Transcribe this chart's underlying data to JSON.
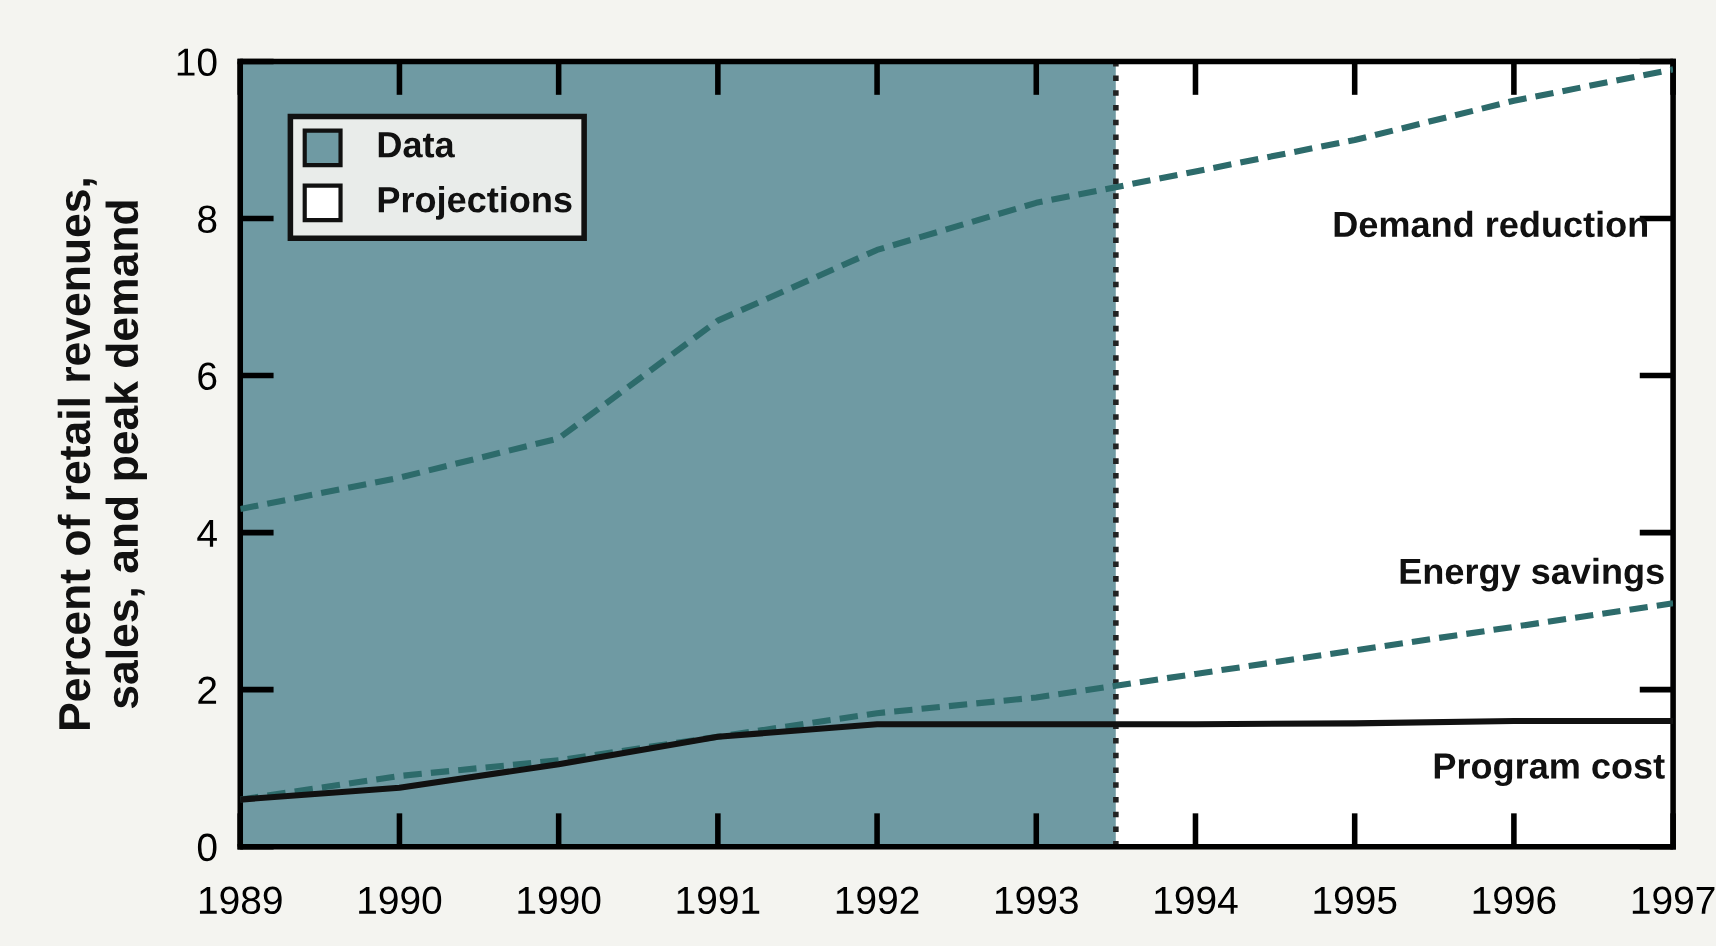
{
  "chart_data": {
    "type": "line",
    "ylabel": "Percent of retail revenues,\nsales, and peak demand",
    "categories": [
      "1989",
      "1990",
      "1990",
      "1991",
      "1992",
      "1993",
      "1994",
      "1995",
      "1996",
      "1997"
    ],
    "ylim": [
      0,
      10
    ],
    "yticks": [
      0,
      2,
      4,
      6,
      8,
      10
    ],
    "series": [
      {
        "name": "Demand reduction",
        "color": "#2d6b6b",
        "line_style": "dashed",
        "values": [
          4.3,
          4.7,
          5.2,
          6.7,
          7.6,
          8.2,
          8.6,
          9.0,
          9.5,
          9.9
        ]
      },
      {
        "name": "Energy savings",
        "color": "#2d6b6b",
        "line_style": "dashed",
        "values": [
          0.6,
          0.9,
          1.1,
          1.4,
          1.7,
          1.9,
          2.2,
          2.5,
          2.8,
          3.1
        ]
      },
      {
        "name": "Program cost",
        "color": "#111111",
        "line_style": "solid",
        "values": [
          0.6,
          0.75,
          1.05,
          1.4,
          1.56,
          1.56,
          1.56,
          1.57,
          1.6,
          1.6
        ]
      }
    ],
    "bands": [
      {
        "axis": "x",
        "from": "1989",
        "to": "1993",
        "color": "#6f9aa3"
      },
      {
        "axis": "x",
        "from": "1994",
        "to": "1997",
        "color": "#ffffff"
      }
    ],
    "annotations": [
      "Data",
      "Projections"
    ],
    "grid": false
  }
}
